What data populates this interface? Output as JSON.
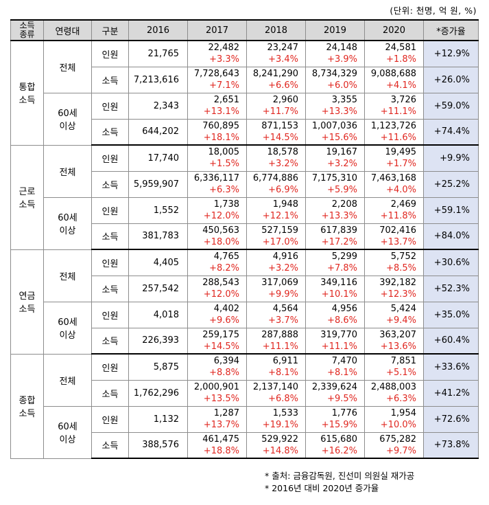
{
  "unit_note": "(단위: 천명, 억 원, %)",
  "headers": [
    "소득\n종류",
    "연령대",
    "구분",
    "2016",
    "2017",
    "2018",
    "2019",
    "2020",
    "*증가율"
  ],
  "groups": [
    {
      "type": "통합\n소득",
      "all_label": "전체",
      "senior_label": "60세\n이상",
      "rows": [
        {
          "item": "인원",
          "y2016": "21,765",
          "y2017": "22,482",
          "p2017": "+3.3%",
          "y2018": "23,247",
          "p2018": "+3.4%",
          "y2019": "24,148",
          "p2019": "+3.9%",
          "y2020": "24,581",
          "p2020": "+1.8%",
          "rate": "+12.9%"
        },
        {
          "item": "소득",
          "y2016": "7,213,616",
          "y2017": "7,728,643",
          "p2017": "+7.1%",
          "y2018": "8,241,290",
          "p2018": "+6.6%",
          "y2019": "8,734,329",
          "p2019": "+6.0%",
          "y2020": "9,088,688",
          "p2020": "+4.1%",
          "rate": "+26.0%"
        },
        {
          "item": "인원",
          "y2016": "2,343",
          "y2017": "2,651",
          "p2017": "+13.1%",
          "y2018": "2,960",
          "p2018": "+11.7%",
          "y2019": "3,355",
          "p2019": "+13.3%",
          "y2020": "3,726",
          "p2020": "+11.1%",
          "rate": "+59.0%"
        },
        {
          "item": "소득",
          "y2016": "644,202",
          "y2017": "760,895",
          "p2017": "+18.1%",
          "y2018": "871,153",
          "p2018": "+14.5%",
          "y2019": "1,007,036",
          "p2019": "+15.6%",
          "y2020": "1,123,726",
          "p2020": "+11.6%",
          "rate": "+74.4%"
        }
      ]
    },
    {
      "type": "근로\n소득",
      "all_label": "전체",
      "senior_label": "60세\n이상",
      "rows": [
        {
          "item": "인원",
          "y2016": "17,740",
          "y2017": "18,005",
          "p2017": "+1.5%",
          "y2018": "18,578",
          "p2018": "+3.2%",
          "y2019": "19,167",
          "p2019": "+3.2%",
          "y2020": "19,495",
          "p2020": "+1.7%",
          "rate": "+9.9%"
        },
        {
          "item": "소득",
          "y2016": "5,959,907",
          "y2017": "6,336,117",
          "p2017": "+6.3%",
          "y2018": "6,774,886",
          "p2018": "+6.9%",
          "y2019": "7,175,310",
          "p2019": "+5.9%",
          "y2020": "7,463,168",
          "p2020": "+4.0%",
          "rate": "+25.2%"
        },
        {
          "item": "인원",
          "y2016": "1,552",
          "y2017": "1,738",
          "p2017": "+12.0%",
          "y2018": "1,948",
          "p2018": "+12.1%",
          "y2019": "2,208",
          "p2019": "+13.3%",
          "y2020": "2,469",
          "p2020": "+11.8%",
          "rate": "+59.1%"
        },
        {
          "item": "소득",
          "y2016": "381,783",
          "y2017": "450,563",
          "p2017": "+18.0%",
          "y2018": "527,159",
          "p2018": "+17.0%",
          "y2019": "617,839",
          "p2019": "+17.2%",
          "y2020": "702,416",
          "p2020": "+13.7%",
          "rate": "+84.0%"
        }
      ]
    },
    {
      "type": "연금\n소득",
      "all_label": "전체",
      "senior_label": "60세\n이상",
      "rows": [
        {
          "item": "인원",
          "y2016": "4,405",
          "y2017": "4,765",
          "p2017": "+8.2%",
          "y2018": "4,916",
          "p2018": "+3.2%",
          "y2019": "5,299",
          "p2019": "+7.8%",
          "y2020": "5,752",
          "p2020": "+8.5%",
          "rate": "+30.6%"
        },
        {
          "item": "소득",
          "y2016": "257,542",
          "y2017": "288,543",
          "p2017": "+12.0%",
          "y2018": "317,069",
          "p2018": "+9.9%",
          "y2019": "349,116",
          "p2019": "+10.1%",
          "y2020": "392,182",
          "p2020": "+12.3%",
          "rate": "+52.3%"
        },
        {
          "item": "인원",
          "y2016": "4,018",
          "y2017": "4,402",
          "p2017": "+9.6%",
          "y2018": "4,564",
          "p2018": "+3.7%",
          "y2019": "4,956",
          "p2019": "+8.6%",
          "y2020": "5,424",
          "p2020": "+9.4%",
          "rate": "+35.0%"
        },
        {
          "item": "소득",
          "y2016": "226,393",
          "y2017": "259,175",
          "p2017": "+14.5%",
          "y2018": "287,888",
          "p2018": "+11.1%",
          "y2019": "319,770",
          "p2019": "+11.1%",
          "y2020": "363,207",
          "p2020": "+13.6%",
          "rate": "+60.4%"
        }
      ]
    },
    {
      "type": "종합\n소득",
      "all_label": "전체",
      "senior_label": "60세\n이상",
      "rows": [
        {
          "item": "인원",
          "y2016": "5,875",
          "y2017": "6,394",
          "p2017": "+8.8%",
          "y2018": "6,911",
          "p2018": "+8.1%",
          "y2019": "7,470",
          "p2019": "+8.1%",
          "y2020": "7,851",
          "p2020": "+5.1%",
          "rate": "+33.6%"
        },
        {
          "item": "소득",
          "y2016": "1,762,296",
          "y2017": "2,000,901",
          "p2017": "+13.5%",
          "y2018": "2,137,140",
          "p2018": "+6.8%",
          "y2019": "2,339,624",
          "p2019": "+9.5%",
          "y2020": "2,488,003",
          "p2020": "+6.3%",
          "rate": "+41.2%"
        },
        {
          "item": "인원",
          "y2016": "1,132",
          "y2017": "1,287",
          "p2017": "+13.7%",
          "y2018": "1,533",
          "p2018": "+19.1%",
          "y2019": "1,776",
          "p2019": "+15.9%",
          "y2020": "1,954",
          "p2020": "+10.0%",
          "rate": "+72.6%"
        },
        {
          "item": "소득",
          "y2016": "388,576",
          "y2017": "461,475",
          "p2017": "+18.8%",
          "y2018": "529,922",
          "p2018": "+14.8%",
          "y2019": "615,680",
          "p2019": "+16.2%",
          "y2020": "675,282",
          "p2020": "+9.7%",
          "rate": "+73.8%"
        }
      ]
    }
  ],
  "footnotes": [
    "* 출처: 금융감독원, 진선미 의원실 재가공",
    "* 2016년 대비 2020년 증가율"
  ],
  "colors": {
    "increase": "#e0261f",
    "rate_bg": "#dde3f3",
    "header_bg": "#d9d9d9"
  }
}
